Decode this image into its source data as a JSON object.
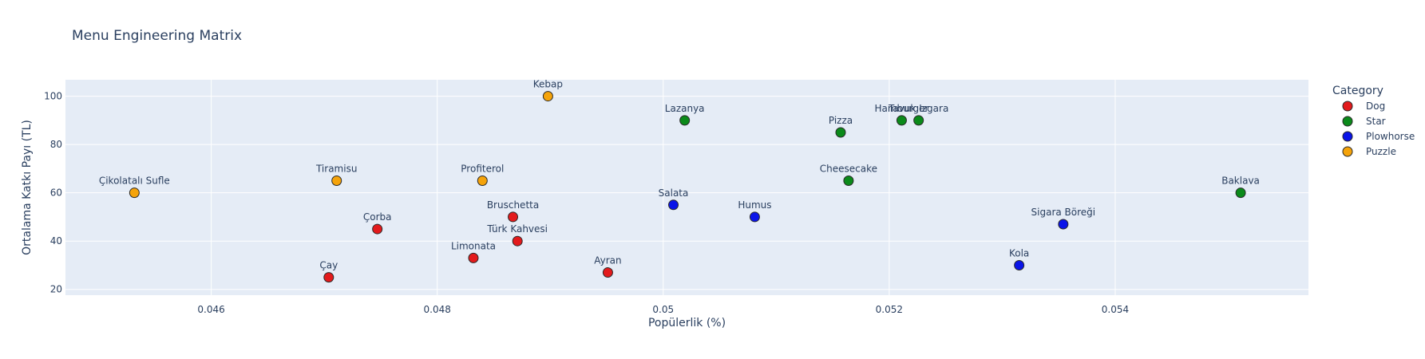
{
  "chart_data": {
    "type": "scatter",
    "title": "Menu Engineering Matrix",
    "xlabel": "Popülerlik (%)",
    "ylabel": "Ortalama Katkı Payı (TL)",
    "xlim": [
      0.04471,
      0.05571
    ],
    "ylim": [
      17.6,
      106.8
    ],
    "x_ticks": [
      0.046,
      0.048,
      0.05,
      0.052,
      0.054
    ],
    "x_tick_labels": [
      "0.046",
      "0.048",
      "0.05",
      "0.052",
      "0.054"
    ],
    "y_ticks": [
      20,
      40,
      60,
      80,
      100
    ],
    "y_tick_labels": [
      "20",
      "40",
      "60",
      "80",
      "100"
    ],
    "grid": true,
    "legend": {
      "title": "Category",
      "placement": "right",
      "entries": [
        "Dog",
        "Star",
        "Plowhorse",
        "Puzzle"
      ]
    },
    "colors": {
      "Dog": "#e31a1c",
      "Star": "#0b8a1a",
      "Plowhorse": "#0a14e8",
      "Puzzle": "#f5a30a"
    },
    "series": [
      {
        "name": "Dog",
        "points": [
          {
            "label": "Çay",
            "x": 0.04704,
            "y": 25
          },
          {
            "label": "Çorba",
            "x": 0.04747,
            "y": 45
          },
          {
            "label": "Limonata",
            "x": 0.04832,
            "y": 33
          },
          {
            "label": "Bruschetta",
            "x": 0.04867,
            "y": 50
          },
          {
            "label": "Türk Kahvesi",
            "x": 0.04871,
            "y": 40
          },
          {
            "label": "Ayran",
            "x": 0.04951,
            "y": 27
          }
        ]
      },
      {
        "name": "Star",
        "points": [
          {
            "label": "Lazanya",
            "x": 0.05019,
            "y": 90
          },
          {
            "label": "Pizza",
            "x": 0.05157,
            "y": 85
          },
          {
            "label": "Cheesecake",
            "x": 0.05164,
            "y": 65
          },
          {
            "label": "Hamburger",
            "x": 0.05211,
            "y": 90
          },
          {
            "label": "Tavuk Izgara",
            "x": 0.05226,
            "y": 90
          },
          {
            "label": "Baklava",
            "x": 0.05511,
            "y": 60
          }
        ]
      },
      {
        "name": "Plowhorse",
        "points": [
          {
            "label": "Salata",
            "x": 0.05009,
            "y": 55
          },
          {
            "label": "Humus",
            "x": 0.05081,
            "y": 50
          },
          {
            "label": "Kola",
            "x": 0.05315,
            "y": 30
          },
          {
            "label": "Sigara Böreği",
            "x": 0.05354,
            "y": 47
          }
        ]
      },
      {
        "name": "Puzzle",
        "points": [
          {
            "label": "Çikolatalı Sufle",
            "x": 0.04532,
            "y": 60
          },
          {
            "label": "Tiramisu",
            "x": 0.04711,
            "y": 65
          },
          {
            "label": "Profiterol",
            "x": 0.0484,
            "y": 65
          },
          {
            "label": "Kebap",
            "x": 0.04898,
            "y": 100
          }
        ]
      }
    ]
  }
}
